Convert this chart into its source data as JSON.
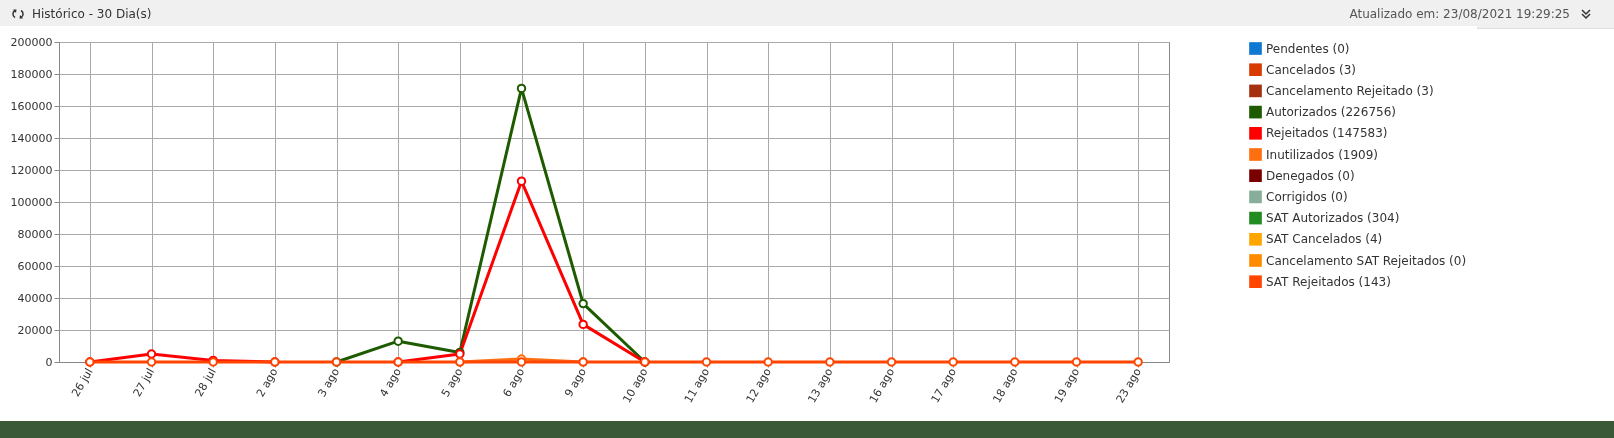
{
  "chart_data": {
    "type": "line",
    "title": "Histórico - 30 Dia(s)",
    "subtitle": "Atualizado em: 23/08/2021 19:29:25",
    "categories": [
      "26 jul",
      "27 jul",
      "28 jul",
      "2 ago",
      "3 ago",
      "4 ago",
      "5 ago",
      "6 ago",
      "9 ago",
      "10 ago",
      "11 ago",
      "12 ago",
      "13 ago",
      "16 ago",
      "17 ago",
      "18 ago",
      "19 ago",
      "23 ago"
    ],
    "series": [
      {
        "name": "Pendentes (0)",
        "color": "#0f78d0",
        "values": [
          null,
          null,
          null,
          null,
          null,
          null,
          null,
          null,
          null,
          null,
          null,
          null,
          null,
          null,
          null,
          null,
          null,
          null
        ]
      },
      {
        "name": "Cancelados (3)",
        "color": "#d83b01",
        "values": [
          null,
          null,
          null,
          null,
          null,
          null,
          null,
          null,
          null,
          null,
          null,
          null,
          null,
          null,
          null,
          null,
          null,
          null
        ]
      },
      {
        "name": "Cancelamento Rejeitado (3)",
        "color": "#a4310f",
        "values": [
          null,
          null,
          null,
          null,
          null,
          null,
          null,
          null,
          null,
          null,
          null,
          null,
          null,
          null,
          null,
          null,
          null,
          null
        ]
      },
      {
        "name": "Autorizados (226756)",
        "color": "#1e5b00",
        "values": [
          null,
          null,
          null,
          null,
          0,
          13000,
          6000,
          171000,
          36500,
          0,
          null,
          null,
          null,
          null,
          null,
          null,
          null,
          null
        ]
      },
      {
        "name": "Rejeitados (147583)",
        "color": "#ff0000",
        "values": [
          0,
          5000,
          1000,
          0,
          null,
          0,
          5000,
          113000,
          23500,
          0,
          null,
          null,
          null,
          null,
          null,
          null,
          null,
          null
        ]
      },
      {
        "name": "Inutilizados (1909)",
        "color": "#ff6f10",
        "values": [
          null,
          null,
          null,
          null,
          null,
          null,
          0,
          1900,
          0,
          null,
          null,
          null,
          null,
          null,
          null,
          null,
          null,
          null
        ]
      },
      {
        "name": "Denegados (0)",
        "color": "#7a0000",
        "values": [
          null,
          null,
          null,
          null,
          null,
          null,
          null,
          null,
          null,
          null,
          null,
          null,
          null,
          null,
          null,
          null,
          null,
          null
        ]
      },
      {
        "name": "Corrigidos (0)",
        "color": "#86ae9a",
        "values": [
          null,
          null,
          null,
          null,
          null,
          null,
          null,
          null,
          null,
          null,
          null,
          null,
          null,
          null,
          null,
          null,
          null,
          null
        ]
      },
      {
        "name": "SAT Autorizados (304)",
        "color": "#228b22",
        "values": [
          null,
          null,
          null,
          null,
          null,
          null,
          null,
          null,
          null,
          null,
          null,
          null,
          null,
          null,
          null,
          null,
          null,
          null
        ]
      },
      {
        "name": "SAT Cancelados (4)",
        "color": "#ffa500",
        "values": [
          null,
          null,
          null,
          null,
          null,
          null,
          null,
          null,
          null,
          null,
          null,
          null,
          null,
          null,
          null,
          null,
          null,
          null
        ]
      },
      {
        "name": "Cancelamento SAT Rejeitados (0)",
        "color": "#ff8c00",
        "values": [
          null,
          null,
          null,
          null,
          null,
          null,
          null,
          null,
          null,
          null,
          null,
          null,
          null,
          null,
          null,
          null,
          null,
          null
        ]
      },
      {
        "name": "SAT Rejeitados (143)",
        "color": "#ff4500",
        "values": [
          0,
          0,
          0,
          0,
          0,
          0,
          0,
          0,
          0,
          0,
          0,
          0,
          0,
          0,
          0,
          0,
          0,
          0
        ]
      }
    ],
    "ylim": [
      0,
      200000
    ],
    "yticks": [
      0,
      20000,
      40000,
      60000,
      80000,
      100000,
      120000,
      140000,
      160000,
      180000,
      200000
    ],
    "grid": true,
    "legend": "top right",
    "marker": "circle",
    "line_style": "solid"
  }
}
